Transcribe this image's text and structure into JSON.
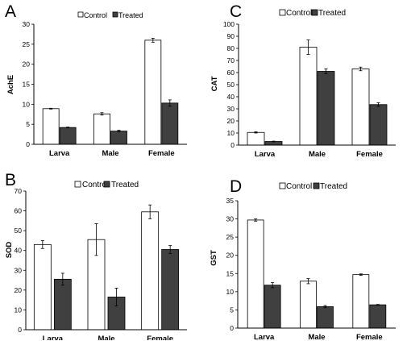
{
  "colors": {
    "control": "#ffffff",
    "treated": "#404040",
    "axis": "#000000"
  },
  "chart_data": [
    {
      "panel": "A",
      "type": "bar",
      "categories": [
        "Larva",
        "Male",
        "Female"
      ],
      "series": [
        {
          "name": "Control",
          "values": [
            8.9,
            7.6,
            26.0
          ],
          "errors": [
            0.1,
            0.3,
            0.5
          ]
        },
        {
          "name": "Treated",
          "values": [
            4.2,
            3.3,
            10.3
          ],
          "errors": [
            0.1,
            0.2,
            0.8
          ]
        }
      ],
      "ylabel": "AchE",
      "ylim": [
        0,
        30
      ],
      "yticks": [
        "0",
        "5",
        "10",
        "15",
        "20",
        "25",
        "30"
      ],
      "legend": "top"
    },
    {
      "panel": "B",
      "type": "bar",
      "categories": [
        "Larva",
        "Male",
        "Female"
      ],
      "series": [
        {
          "name": "Control",
          "values": [
            43.0,
            45.5,
            59.5
          ],
          "errors": [
            2.0,
            8.0,
            3.5
          ]
        },
        {
          "name": "Treated",
          "values": [
            25.5,
            16.5,
            40.5
          ],
          "errors": [
            3.0,
            4.5,
            2.0
          ]
        }
      ],
      "ylabel": "SOD",
      "ylim": [
        0,
        70
      ],
      "yticks": [
        "0",
        "10",
        "20",
        "30",
        "40",
        "50",
        "60",
        "70"
      ],
      "legend": "top"
    },
    {
      "panel": "C",
      "type": "bar",
      "categories": [
        "Larva",
        "Male",
        "Female"
      ],
      "series": [
        {
          "name": "Control",
          "values": [
            10.5,
            81.0,
            63.0
          ],
          "errors": [
            0.5,
            6.0,
            1.5
          ]
        },
        {
          "name": "Treated",
          "values": [
            3.0,
            61.0,
            33.5
          ],
          "errors": [
            0.3,
            2.0,
            1.5
          ]
        }
      ],
      "ylabel": "CAT",
      "ylim": [
        0,
        100
      ],
      "yticks": [
        "0",
        "10",
        "20",
        "30",
        "40",
        "50",
        "60",
        "70",
        "80",
        "90",
        "100"
      ],
      "legend": "top"
    },
    {
      "panel": "D",
      "type": "bar",
      "categories": [
        "Larva",
        "Male",
        "Female"
      ],
      "series": [
        {
          "name": "Control",
          "values": [
            29.7,
            12.9,
            14.7
          ],
          "errors": [
            0.3,
            0.7,
            0.2
          ]
        },
        {
          "name": "Treated",
          "values": [
            11.8,
            5.9,
            6.4
          ],
          "errors": [
            0.7,
            0.3,
            0.1
          ]
        }
      ],
      "ylabel": "GST",
      "ylim": [
        0,
        35
      ],
      "yticks": [
        "0",
        "5",
        "10",
        "15",
        "20",
        "25",
        "30",
        "35"
      ],
      "legend": "top"
    }
  ]
}
